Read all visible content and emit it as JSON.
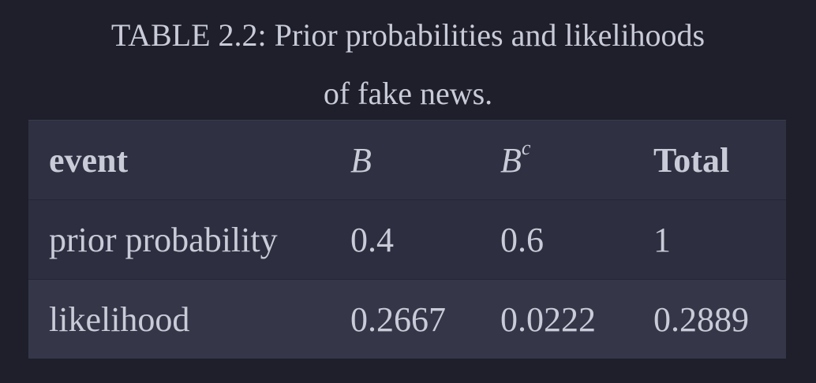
{
  "caption": {
    "line1": "TABLE 2.2: Prior probabilities and likelihoods",
    "line2": "of fake news."
  },
  "table": {
    "headers": [
      "event",
      "B",
      "B",
      "Total"
    ],
    "header_superscript": "c",
    "rows": [
      [
        "prior probability",
        "0.4",
        "0.6",
        "1"
      ],
      [
        "likelihood",
        "0.2667",
        "0.0222",
        "0.2889"
      ]
    ]
  }
}
